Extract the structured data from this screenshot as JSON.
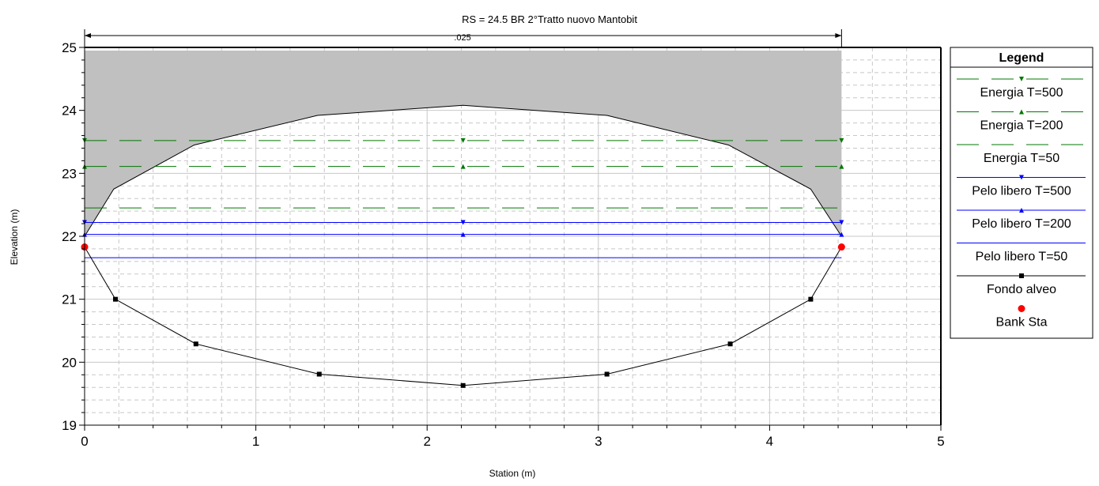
{
  "chart_data": {
    "type": "line",
    "title": "RS = 24.5    BR    2°Tratto nuovo Mantobit",
    "roughness_label": ".025",
    "xlabel": "Station (m)",
    "ylabel": "Elevation (m)",
    "xlim": [
      0,
      5
    ],
    "ylim": [
      19,
      25
    ],
    "x_ticks": [
      "0",
      "1",
      "2",
      "3",
      "4",
      "5"
    ],
    "y_ticks": [
      "19",
      "20",
      "21",
      "22",
      "23",
      "24",
      "25"
    ],
    "grid": true,
    "legend_position": "right",
    "legend_title": "Legend",
    "deck": {
      "top": 24.95,
      "x_extent": [
        0,
        4.42
      ],
      "low_chord": [
        {
          "x": 0,
          "y": 22.0
        },
        {
          "x": 0.17,
          "y": 22.75
        },
        {
          "x": 0.64,
          "y": 23.45
        },
        {
          "x": 1.36,
          "y": 23.92
        },
        {
          "x": 2.21,
          "y": 24.08
        },
        {
          "x": 3.05,
          "y": 23.92
        },
        {
          "x": 3.76,
          "y": 23.45
        },
        {
          "x": 4.24,
          "y": 22.75
        },
        {
          "x": 4.42,
          "y": 22.0
        }
      ]
    },
    "series": [
      {
        "name": "Energia T=500",
        "color": "#007700",
        "style": "dashed",
        "marker": "triangle-down",
        "y": 23.52,
        "x": [
          0,
          4.42
        ]
      },
      {
        "name": "Energia T=200",
        "color": "#007700",
        "style": "dashed",
        "marker": "triangle-up",
        "y": 23.11,
        "x": [
          0,
          4.42
        ]
      },
      {
        "name": "Energia T=50",
        "color": "#007700",
        "style": "dashed",
        "marker": "none",
        "y": 22.45,
        "x": [
          0,
          4.42
        ]
      },
      {
        "name": "Pelo libero T=500",
        "color": "#0000ff",
        "style": "solid",
        "marker": "triangle-down",
        "y": 22.22,
        "x": [
          0,
          4.42
        ]
      },
      {
        "name": "Pelo libero T=200",
        "color": "#0000ff",
        "style": "solid",
        "marker": "triangle-up",
        "y": 22.03,
        "x": [
          0,
          4.42
        ]
      },
      {
        "name": "Pelo libero T=50",
        "color": "#0000ff",
        "style": "solid",
        "marker": "none",
        "y": 21.66,
        "x": [
          0,
          4.42
        ]
      },
      {
        "name": "Fondo alveo",
        "color": "#000000",
        "style": "solid",
        "marker": "square",
        "points": [
          {
            "x": 0,
            "y": 21.83
          },
          {
            "x": 0.18,
            "y": 21.0
          },
          {
            "x": 0.65,
            "y": 20.29
          },
          {
            "x": 1.37,
            "y": 19.81
          },
          {
            "x": 2.21,
            "y": 19.63
          },
          {
            "x": 3.05,
            "y": 19.81
          },
          {
            "x": 3.77,
            "y": 20.29
          },
          {
            "x": 4.24,
            "y": 21.0
          },
          {
            "x": 4.42,
            "y": 21.83
          }
        ]
      },
      {
        "name": "Bank Sta",
        "color": "#ff0000",
        "style": "none",
        "marker": "circle",
        "points": [
          {
            "x": 0,
            "y": 21.83
          },
          {
            "x": 4.42,
            "y": 21.83
          }
        ]
      }
    ]
  }
}
